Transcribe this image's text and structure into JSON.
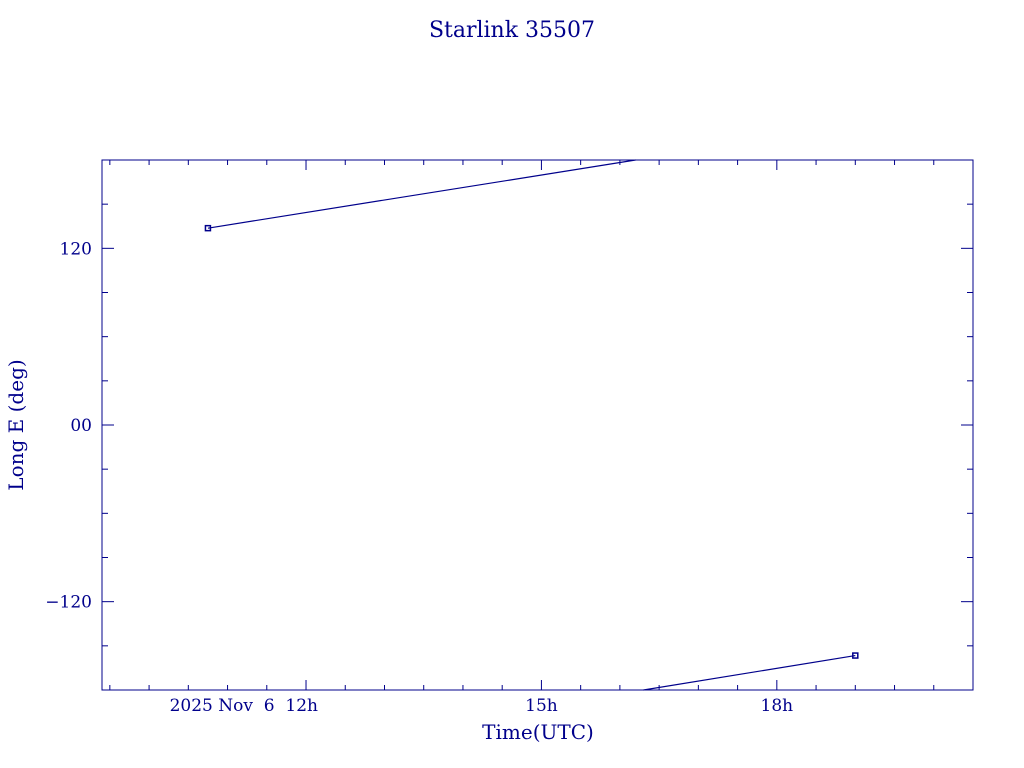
{
  "colors": {
    "ink": "#00008b"
  },
  "chart_data": {
    "type": "line",
    "title": "Starlink 35507",
    "xlabel": "Time(UTC)",
    "ylabel": "Long E (deg)",
    "x_unit": "hours UTC, 2025 Nov 6",
    "xlim": [
      9.4,
      20.5
    ],
    "ylim": [
      -180,
      180
    ],
    "x_ticks": [
      {
        "value": 12,
        "label": "2025 Nov  6  12h"
      },
      {
        "value": 15,
        "label": "15h"
      },
      {
        "value": 18,
        "label": "18h"
      }
    ],
    "y_ticks": [
      {
        "value": 120,
        "label": "120"
      },
      {
        "value": 0,
        "label": "00"
      },
      {
        "value": -120,
        "label": "−120"
      }
    ],
    "series": [
      {
        "segments": [
          [
            {
              "x": 10.75,
              "y": 133.7
            },
            {
              "x": 16.2,
              "y": 180
            }
          ],
          [
            {
              "x": 16.3,
              "y": -180
            },
            {
              "x": 19.0,
              "y": -156.6
            }
          ]
        ],
        "markers": [
          {
            "x": 10.75,
            "y": 133.7
          },
          {
            "x": 19.0,
            "y": -156.6
          }
        ]
      }
    ]
  }
}
